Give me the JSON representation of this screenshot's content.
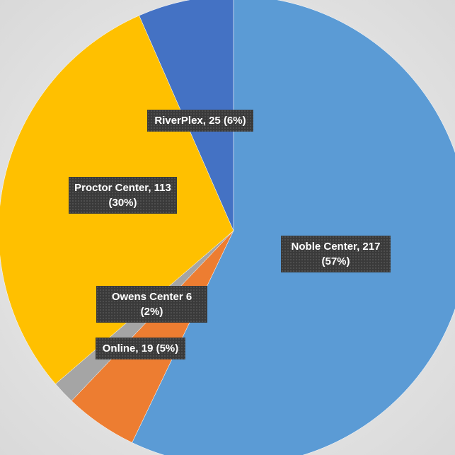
{
  "chart_data": {
    "type": "pie",
    "values": [
      217,
      19,
      6,
      113,
      25
    ],
    "value_labels": [
      "Noble Center, 217 (57%)",
      "Online, 19 (5%)",
      "Owens Center 6 (2%)",
      "Proctor Center, 113 (30%)",
      "RiverPlex, 25 (6%)"
    ],
    "colors": [
      "#5b9bd5",
      "#ed7d31",
      "#a5a5a5",
      "#ffc000",
      "#4472c4"
    ]
  }
}
